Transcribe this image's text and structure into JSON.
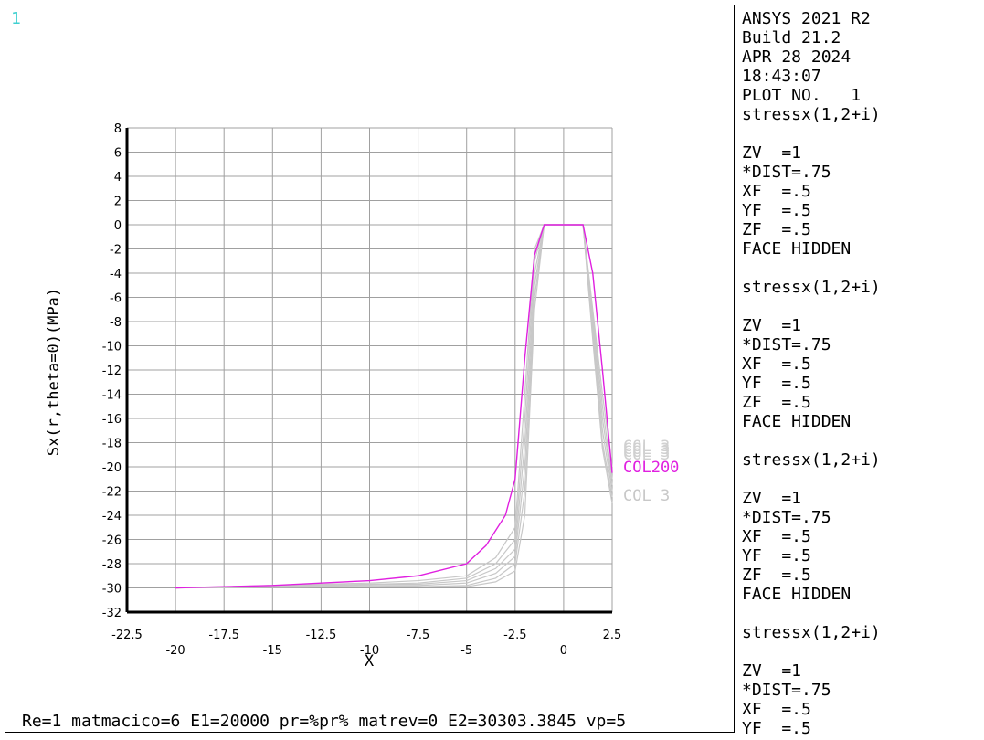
{
  "window_number": "1",
  "sidebar_lines": [
    "ANSYS 2021 R2",
    "Build 21.2",
    "APR 28 2024",
    "18:43:07",
    "PLOT NO.   1",
    "stressx(1,2+i)",
    "",
    "ZV  =1",
    "*DIST=.75",
    "XF  =.5",
    "YF  =.5",
    "ZF  =.5",
    "FACE HIDDEN",
    "",
    "stressx(1,2+i)",
    "",
    "ZV  =1",
    "*DIST=.75",
    "XF  =.5",
    "YF  =.5",
    "ZF  =.5",
    "FACE HIDDEN",
    "",
    "stressx(1,2+i)",
    "",
    "ZV  =1",
    "*DIST=.75",
    "XF  =.5",
    "YF  =.5",
    "ZF  =.5",
    "FACE HIDDEN",
    "",
    "stressx(1,2+i)",
    "",
    "ZV  =1",
    "*DIST=.75",
    "XF  =.5",
    "YF  =.5"
  ],
  "footer_caption": "Re=1 matmacico=6 E1=20000 pr=%pr% matrev=0 E2=30303.3845 vp=5",
  "colors": {
    "highlight": "#e020e0",
    "background_series": "#c8c8c8",
    "grid": "#a0a0a0",
    "window_number": "#3fd0d0"
  },
  "chart_data": {
    "type": "line",
    "xlabel": "X",
    "ylabel": "Sx(r,theta=0)(MPa)",
    "xlim": [
      -22.5,
      2.5
    ],
    "ylim": [
      -32,
      8
    ],
    "grid": true,
    "x_ticks_upper": [
      "-22.5",
      "-17.5",
      "-12.5",
      "-7.5",
      "-2.5",
      "2.5"
    ],
    "x_ticks_upper_values": [
      -22.5,
      -17.5,
      -12.5,
      -7.5,
      -2.5,
      2.5
    ],
    "x_ticks_lower": [
      "-20",
      "-15",
      "-10",
      "-5",
      "0"
    ],
    "x_ticks_lower_values": [
      -20,
      -15,
      -10,
      -5,
      0
    ],
    "y_ticks": [
      8,
      6,
      4,
      2,
      0,
      -2,
      -4,
      -6,
      -8,
      -10,
      -12,
      -14,
      -16,
      -18,
      -20,
      -22,
      -24,
      -26,
      -28,
      -30,
      -32
    ],
    "legend": [
      {
        "label": "COL200",
        "style": "highlight"
      },
      {
        "label": "COL  3",
        "style": "background"
      }
    ],
    "highlighted_series": {
      "name": "COL200",
      "x": [
        -20,
        -15,
        -10,
        -7.5,
        -5,
        -4,
        -3,
        -2.5,
        -2,
        -1.5,
        -1,
        0,
        1,
        1.5,
        2,
        2.5
      ],
      "y": [
        -30,
        -29.8,
        -29.4,
        -29,
        -28,
        -26.5,
        -24,
        -21,
        -11,
        -2.5,
        0,
        0,
        0,
        -4,
        -12,
        -20.5
      ]
    },
    "background_series": [
      {
        "x": [
          -20,
          -10,
          -7.5,
          -5,
          -3.5,
          -2.5,
          -2,
          -1.5,
          -1,
          0,
          1,
          1.5,
          2,
          2.5
        ],
        "y": [
          -30,
          -29.6,
          -29.4,
          -29,
          -27.5,
          -25,
          -14,
          -2,
          0,
          0,
          0,
          -7,
          -14,
          -20
        ]
      },
      {
        "x": [
          -20,
          -10,
          -7.5,
          -5,
          -3.5,
          -2.5,
          -2,
          -1.5,
          -1,
          0,
          1,
          1.5,
          2,
          2.5
        ],
        "y": [
          -30,
          -29.7,
          -29.6,
          -29.2,
          -28,
          -26,
          -16,
          -3,
          0,
          0,
          0,
          -7.5,
          -15,
          -21
        ]
      },
      {
        "x": [
          -20,
          -10,
          -7.5,
          -5,
          -3.5,
          -2.5,
          -2,
          -1.5,
          -1,
          0,
          1,
          1.5,
          2,
          2.5
        ],
        "y": [
          -30,
          -29.7,
          -29.7,
          -29.4,
          -28.4,
          -26.8,
          -18,
          -4,
          0,
          0,
          0,
          -8,
          -16,
          -21.5
        ]
      },
      {
        "x": [
          -20,
          -10,
          -7.5,
          -5,
          -3.5,
          -2.5,
          -2,
          -1.5,
          -1,
          0,
          1,
          1.5,
          2,
          2.5
        ],
        "y": [
          -30,
          -29.8,
          -29.8,
          -29.6,
          -28.8,
          -27.4,
          -20,
          -5,
          0,
          0,
          0,
          -8.5,
          -17,
          -22
        ]
      },
      {
        "x": [
          -20,
          -10,
          -7.5,
          -5,
          -3.5,
          -2.5,
          -2,
          -1.5,
          -1,
          0,
          1,
          1.5,
          2,
          2.5
        ],
        "y": [
          -30,
          -29.8,
          -29.9,
          -29.8,
          -29.2,
          -28,
          -22,
          -6,
          0,
          0,
          0,
          -9,
          -18,
          -22.5
        ]
      },
      {
        "x": [
          -20,
          -10,
          -7.5,
          -5,
          -3.5,
          -2.5,
          -2,
          -1.5,
          -1,
          0,
          1,
          1.5,
          2,
          2.5
        ],
        "y": [
          -30,
          -29.9,
          -29.9,
          -29.9,
          -29.5,
          -28.6,
          -24,
          -7,
          0,
          0,
          0,
          -9.5,
          -18.5,
          -23
        ]
      }
    ]
  }
}
